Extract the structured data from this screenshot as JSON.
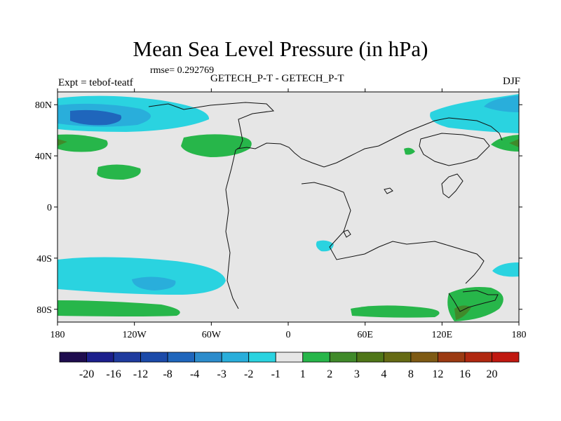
{
  "chart_data": {
    "type": "map",
    "title": "Mean Sea Level Pressure (in hPa)",
    "rmse_label": "rmse= 0.292769",
    "left_label": "Expt = tebof-teatf",
    "center_label": "GETECH_P-T - GETECH_P-T",
    "right_label": "DJF",
    "xlim": [
      -180,
      180
    ],
    "ylim": [
      -90,
      90
    ],
    "x_ticks": [
      {
        "value": -180,
        "label": "180"
      },
      {
        "value": -120,
        "label": "120W"
      },
      {
        "value": -60,
        "label": "60W"
      },
      {
        "value": 0,
        "label": "0"
      },
      {
        "value": 60,
        "label": "60E"
      },
      {
        "value": 120,
        "label": "120E"
      },
      {
        "value": 180,
        "label": "180"
      }
    ],
    "y_ticks": [
      {
        "value": 80,
        "label": "80N"
      },
      {
        "value": 40,
        "label": "40N"
      },
      {
        "value": 0,
        "label": "0"
      },
      {
        "value": -40,
        "label": "40S"
      },
      {
        "value": -80,
        "label": "80S"
      }
    ],
    "colorbar": {
      "colors": [
        "#1e0c4e",
        "#1c1f8c",
        "#1f3b9e",
        "#1b4aa9",
        "#1f66bc",
        "#2c8ccc",
        "#29aedb",
        "#2ad3e0",
        "#e6e6e6",
        "#27b64a",
        "#408a2a",
        "#4f7618",
        "#656a14",
        "#7e5a14",
        "#9b3a12",
        "#b02810",
        "#c01810"
      ],
      "labels": [
        "-20",
        "-16",
        "-12",
        "-8",
        "-4",
        "-3",
        "-2",
        "-1",
        "1",
        "2",
        "3",
        "4",
        "8",
        "12",
        "16",
        "20"
      ]
    },
    "regions": [
      {
        "name": "north-pacific-low",
        "level": "-2",
        "color": "#2ad3e0",
        "lon": -150,
        "lat": 70
      },
      {
        "name": "north-pacific-core",
        "level": "-3",
        "color": "#29aedb",
        "lon": -157,
        "lat": 70
      },
      {
        "name": "north-pacific-deep",
        "level": "-4",
        "color": "#1f66bc",
        "lon": -160,
        "lat": 68
      },
      {
        "name": "arctic-east-low",
        "level": "-2",
        "color": "#2ad3e0",
        "lon": 148,
        "lat": 74
      },
      {
        "name": "arctic-east-core",
        "level": "-3",
        "color": "#29aedb",
        "lon": 158,
        "lat": 80
      },
      {
        "name": "southern-pacific-low",
        "level": "-2",
        "color": "#2ad3e0",
        "lon": -120,
        "lat": -58
      },
      {
        "name": "southern-pacific-core",
        "level": "-3",
        "color": "#29aedb",
        "lon": -108,
        "lat": -59
      },
      {
        "name": "south-atlantic-low",
        "level": "-2",
        "color": "#2ad3e0",
        "lon": 28,
        "lat": -30
      },
      {
        "name": "indian-ocean-low",
        "level": "-2",
        "color": "#2ad3e0",
        "lon": 165,
        "lat": -48
      },
      {
        "name": "north-pacific-high-west",
        "level": "2",
        "color": "#27b64a",
        "lon": -170,
        "lat": 50
      },
      {
        "name": "north-pacific-high-west-core",
        "level": "3",
        "color": "#408a2a",
        "lon": -179,
        "lat": 50
      },
      {
        "name": "east-pacific-high",
        "level": "2",
        "color": "#27b64a",
        "lon": -130,
        "lat": 26
      },
      {
        "name": "north-atlantic-high",
        "level": "2",
        "color": "#27b64a",
        "lon": -55,
        "lat": 48
      },
      {
        "name": "asia-high-small",
        "level": "2",
        "color": "#27b64a",
        "lon": 95,
        "lat": 42
      },
      {
        "name": "east-high",
        "level": "2",
        "color": "#27b64a",
        "lon": 172,
        "lat": 50
      },
      {
        "name": "east-high-core",
        "level": "3",
        "color": "#408a2a",
        "lon": 179,
        "lat": 50
      },
      {
        "name": "southern-high-west",
        "level": "2",
        "color": "#27b64a",
        "lon": -145,
        "lat": -82
      },
      {
        "name": "southern-high-east",
        "level": "2",
        "color": "#27b64a",
        "lon": 80,
        "lat": -82
      },
      {
        "name": "antarctic-high",
        "level": "2",
        "color": "#27b64a",
        "lon": 137,
        "lat": -78
      },
      {
        "name": "antarctic-high-core",
        "level": "3",
        "color": "#408a2a",
        "lon": 138,
        "lat": -85
      }
    ]
  }
}
